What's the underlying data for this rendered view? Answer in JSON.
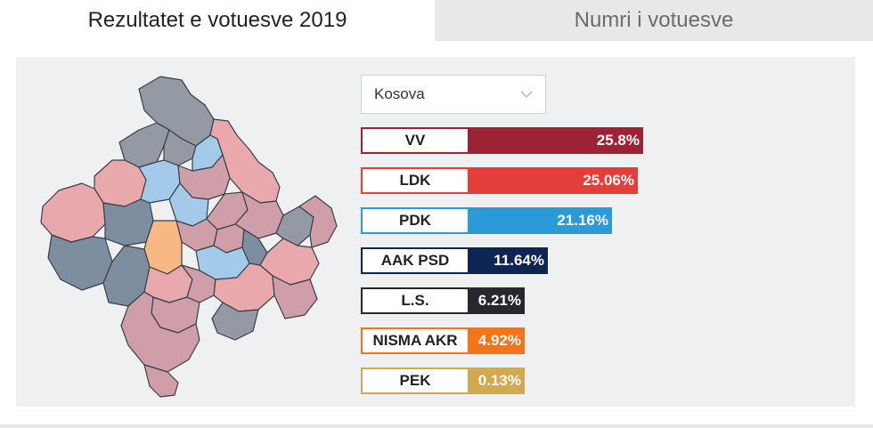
{
  "tabs": [
    {
      "label": "Rezultatet e votuesve 2019"
    },
    {
      "label": "Numri i votuesve"
    }
  ],
  "region_select": {
    "value": "Kosova"
  },
  "colors": {
    "gray": "#939aa3",
    "slate": "#7e8ea1",
    "pink": "#e9a8ab",
    "rose": "#cf9ea8",
    "lightblue": "#a3cbe9",
    "orange": "#f7b884"
  },
  "chart_data": {
    "type": "bar",
    "orientation": "horizontal",
    "title": "",
    "xlabel": "",
    "ylabel": "",
    "xlim": [
      0,
      25.8
    ],
    "categories": [
      "VV",
      "LDK",
      "PDK",
      "AAK PSD",
      "L.S.",
      "NISMA AKR",
      "PEK"
    ],
    "values": [
      25.8,
      25.06,
      21.16,
      11.64,
      6.21,
      4.92,
      0.13
    ],
    "value_labels": [
      "25.8%",
      "25.06%",
      "21.16%",
      "11.64%",
      "6.21%",
      "4.92%",
      "0.13%"
    ],
    "series_colors": [
      "#9b2335",
      "#e53e3a",
      "#2a9ad8",
      "#0d2552",
      "#26282b",
      "#f57419",
      "#d3a94f"
    ]
  }
}
